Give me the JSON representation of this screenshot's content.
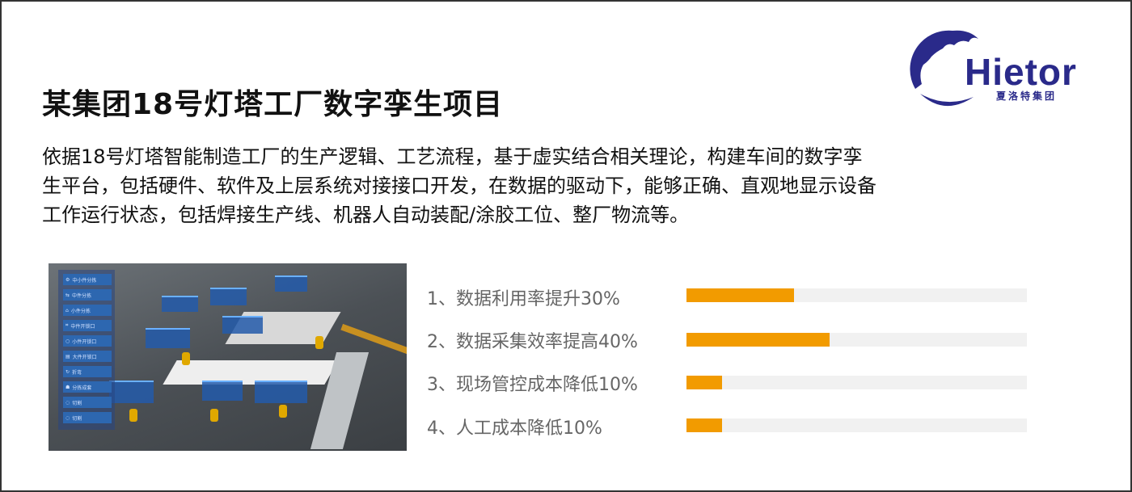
{
  "title": "某集团18号灯塔工厂数字孪生项目",
  "description": [
    "依据18号灯塔智能制造工厂的生产逻辑、工艺流程，基于虚实结合相关理论，构建车间的数字孪",
    "生平台，包括硬件、软件及上层系统对接接口开发，在数据的驱动下，能够正确、直观地显示设备",
    "工作运行状态，包括焊接生产线、机器人自动装配/涂胶工位、整厂物流等。"
  ],
  "logo": {
    "name": "Hietor",
    "subtitle": "夏洛特集团",
    "color": "#2a2a8a"
  },
  "scene_menu": [
    "中小件分拣",
    "中件分拣",
    "小件分拣",
    "中件开锁口",
    "小件开锁口",
    "大件开锁口",
    "折弯",
    "分拣成套",
    "切割",
    "切割"
  ],
  "metrics": [
    {
      "label": "1、数据利用率提升30%",
      "percent": 30
    },
    {
      "label": "2、数据采集效率提高40%",
      "percent": 40
    },
    {
      "label": "3、现场管控成本降低10%",
      "percent": 10
    },
    {
      "label": "4、人工成本降低10%",
      "percent": 10
    }
  ],
  "colors": {
    "bar_fill": "#f29b00",
    "bar_track": "#f1f1f1"
  }
}
